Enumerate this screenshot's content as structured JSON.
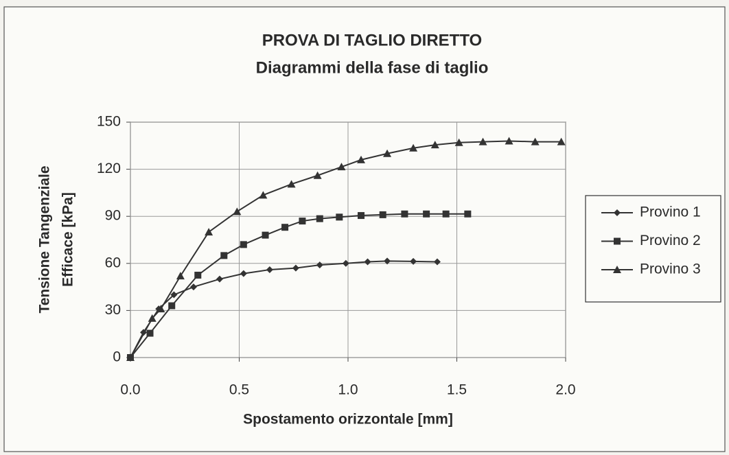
{
  "chart_data": {
    "type": "line",
    "title": "PROVA DI TAGLIO DIRETTO",
    "subtitle": "Diagrammi della fase di taglio",
    "x_label": "Spostamento orizzontale [mm]",
    "y_label": [
      "Tensione Tangenziale",
      "Efficace [kPa]"
    ],
    "xlim": [
      0,
      2
    ],
    "ylim": [
      0,
      150
    ],
    "xticks": [
      {
        "value": 0,
        "label": "0.0"
      },
      0.5,
      {
        "value": 1,
        "label": "1.0"
      },
      1.5,
      {
        "value": 2,
        "label": "2.0"
      }
    ],
    "yticks": [
      0,
      30,
      60,
      90,
      120,
      150
    ],
    "grid": true,
    "legend": "right",
    "series": [
      {
        "name": "Provino 1",
        "color": "#333333",
        "marker": "diamond",
        "x": [
          0,
          0.06,
          0.13,
          0.2,
          0.29,
          0.41,
          0.52,
          0.64,
          0.76,
          0.87,
          0.99,
          1.09,
          1.18,
          1.3,
          1.41
        ],
        "values": [
          0,
          16,
          31,
          40,
          45,
          50,
          53.5,
          56,
          57,
          59,
          60,
          61,
          61.5,
          61.3,
          61
        ]
      },
      {
        "name": "Provino 2",
        "color": "#333333",
        "marker": "square",
        "x": [
          0,
          0.09,
          0.19,
          0.31,
          0.43,
          0.52,
          0.62,
          0.71,
          0.79,
          0.87,
          0.96,
          1.06,
          1.16,
          1.26,
          1.36,
          1.45,
          1.55
        ],
        "values": [
          0,
          15.5,
          33,
          52.5,
          65,
          72,
          78,
          83,
          87,
          88.5,
          89.5,
          90.5,
          91,
          91.5,
          91.5,
          91.5,
          91.5
        ]
      },
      {
        "name": "Provino 3",
        "color": "#333333",
        "marker": "triangle",
        "x": [
          0,
          0.1,
          0.14,
          0.23,
          0.36,
          0.49,
          0.61,
          0.74,
          0.86,
          0.97,
          1.06,
          1.18,
          1.3,
          1.4,
          1.51,
          1.62,
          1.74,
          1.86,
          1.98
        ],
        "values": [
          0,
          25,
          31,
          52,
          80,
          93,
          103.5,
          110.5,
          116,
          121.5,
          126,
          130,
          133.5,
          135.5,
          137,
          137.5,
          138,
          137.5,
          137.5
        ]
      }
    ]
  }
}
